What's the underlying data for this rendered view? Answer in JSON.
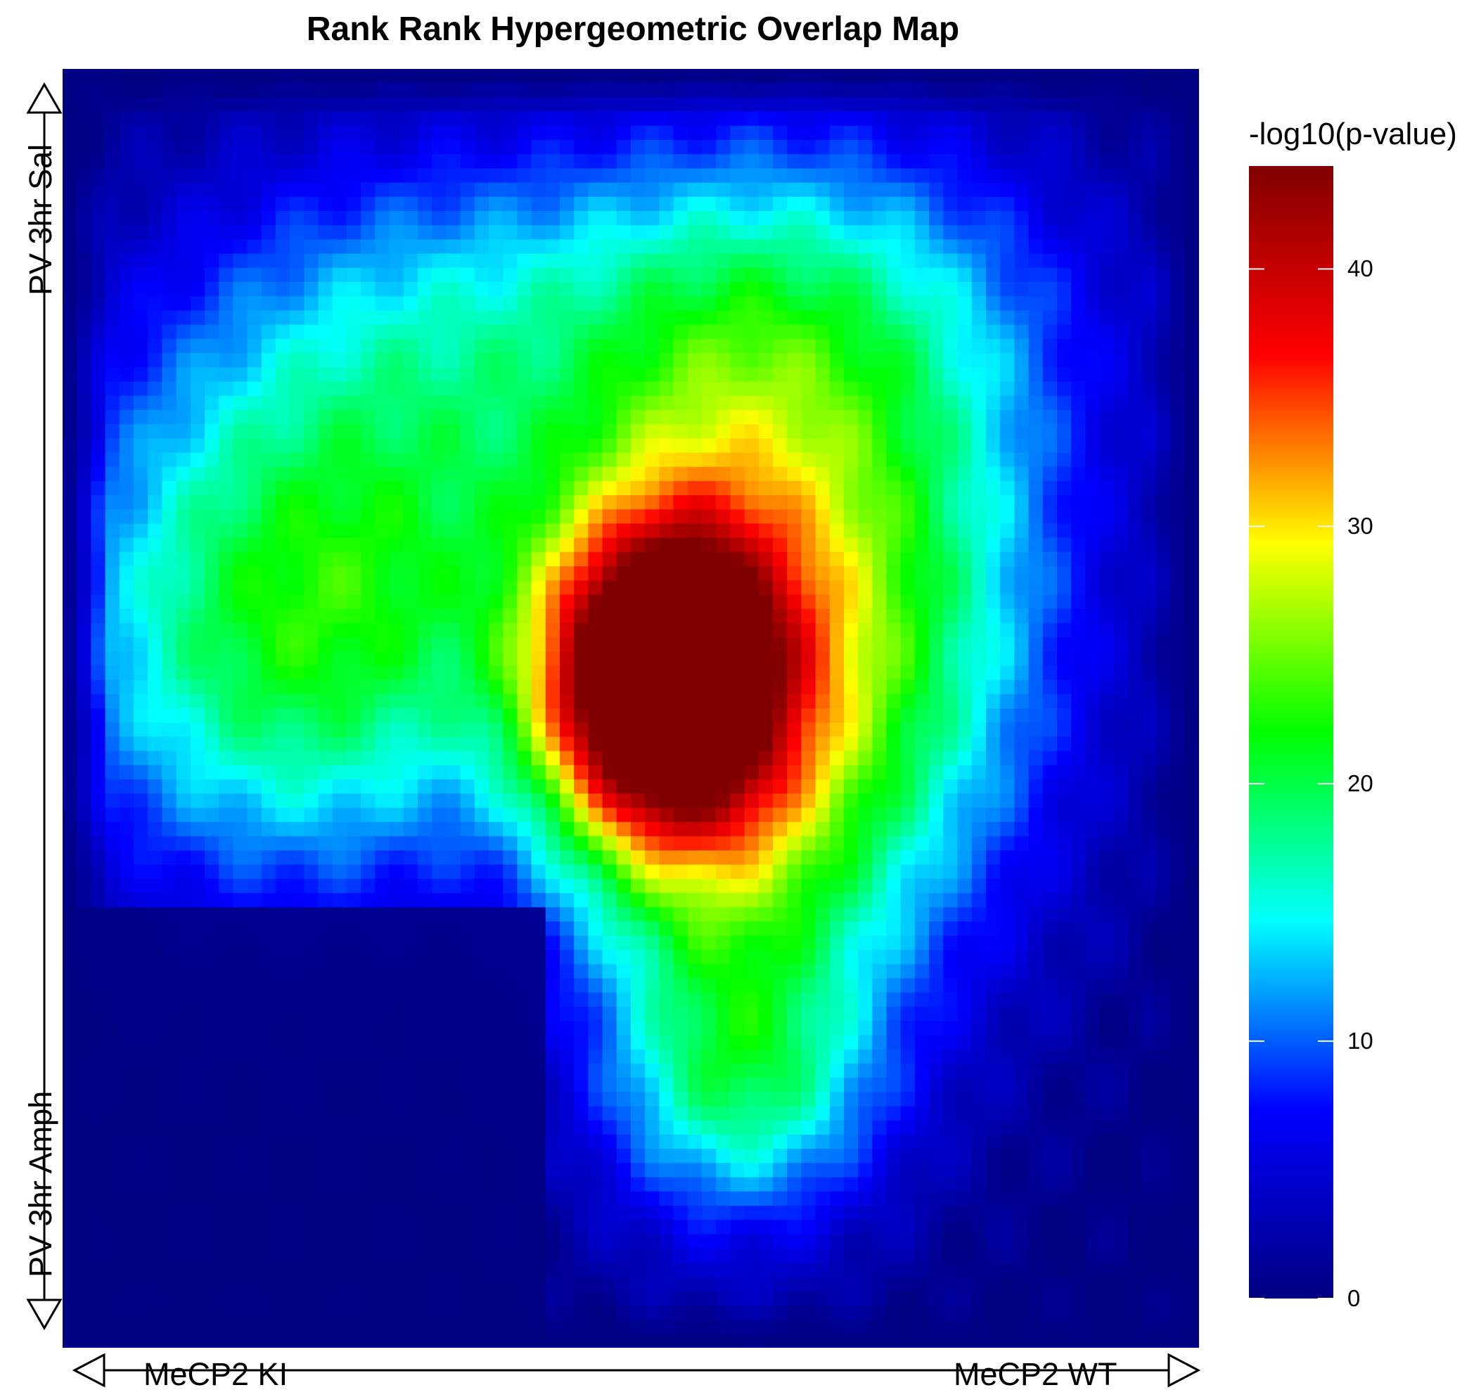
{
  "chart_data": {
    "type": "heatmap",
    "title": "Rank Rank Hypergeometric Overlap Map",
    "x_axis": {
      "left_label": "MeCP2 KI",
      "right_label": "MeCP2 WT"
    },
    "y_axis": {
      "top_label": "PV 3hr Sal",
      "bottom_label": "PV 3hr Amph"
    },
    "colorbar": {
      "title": "-log10(p-value)",
      "range": [
        0,
        44
      ],
      "ticks": [
        0,
        10,
        20,
        30,
        40
      ],
      "tick_labels": [
        "0",
        "10",
        "20",
        "30",
        "40"
      ],
      "colors": [
        "#000080",
        "#0000ff",
        "#00ffff",
        "#00ff00",
        "#ffff00",
        "#ff0000",
        "#800000"
      ]
    },
    "grid": false,
    "legend_position": "right",
    "data_description_value_peak": 44,
    "regions": [
      {
        "x": 0.52,
        "y": 0.48,
        "value": 44
      },
      {
        "x": 0.12,
        "y": 0.48,
        "value": 20
      },
      {
        "x": 0.75,
        "y": 0.45,
        "value": 25
      }
    ]
  }
}
